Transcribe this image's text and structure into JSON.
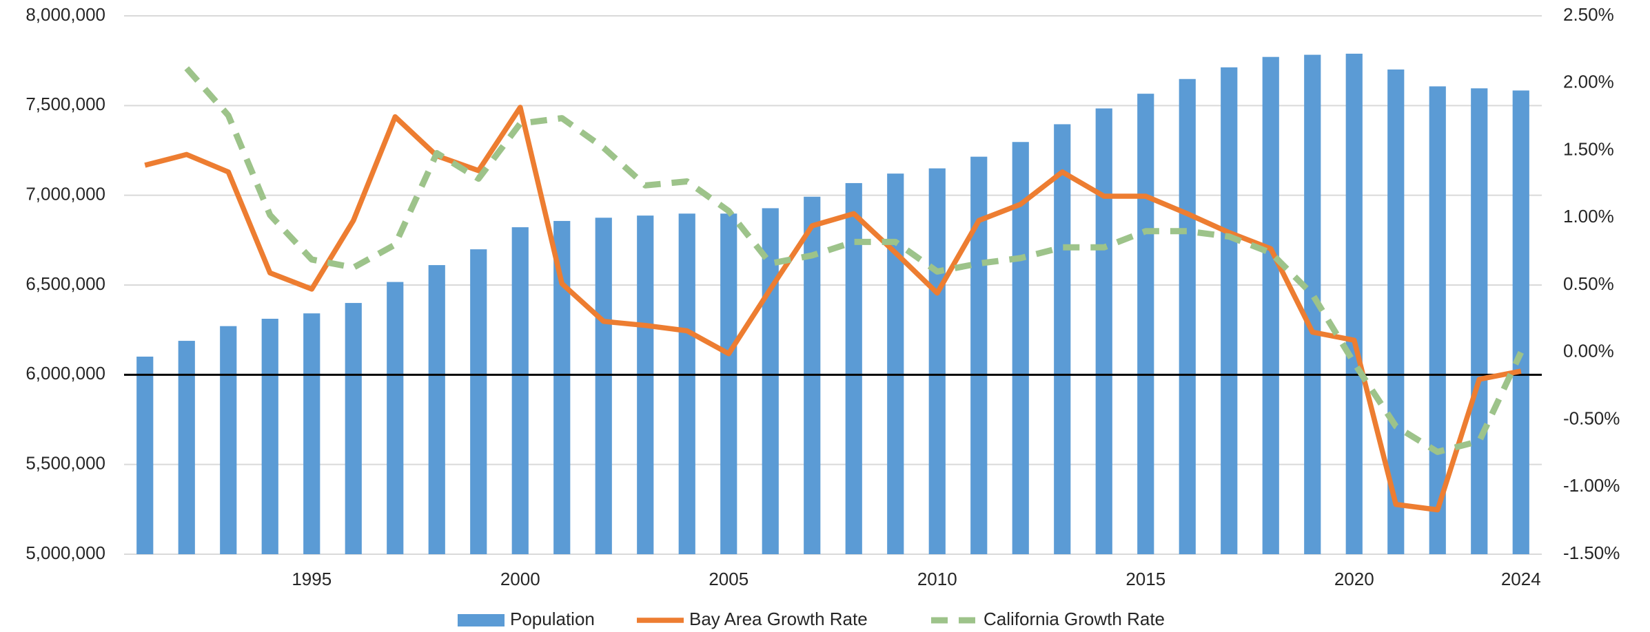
{
  "chart_data": {
    "type": "bar_line",
    "categories": [
      null,
      null,
      null,
      null,
      1995,
      null,
      null,
      null,
      null,
      2000,
      null,
      null,
      null,
      null,
      2005,
      null,
      null,
      null,
      null,
      2010,
      null,
      null,
      null,
      null,
      2015,
      null,
      null,
      null,
      null,
      2020,
      null,
      null,
      null,
      2024
    ],
    "series": [
      {
        "name": "Population",
        "type": "bar",
        "color": "#5b9bd5",
        "axis": "y",
        "values": [
          6101000,
          6189000,
          6271000,
          6312000,
          6342000,
          6400000,
          6517000,
          6611000,
          6699000,
          6822000,
          6857000,
          6875000,
          6887000,
          6898000,
          6898000,
          6928000,
          6992000,
          7068000,
          7121000,
          7150000,
          7215000,
          7297000,
          7396000,
          7484000,
          7566000,
          7648000,
          7713000,
          7771000,
          7783000,
          7789000,
          7701000,
          7607000,
          7596000,
          7584000
        ]
      },
      {
        "name": "Bay Area Growth Rate",
        "type": "line",
        "color": "#ed7d31",
        "axis": "y2",
        "values": [
          1.39,
          1.47,
          1.34,
          0.59,
          0.47,
          0.98,
          1.75,
          1.46,
          1.35,
          1.82,
          0.51,
          0.23,
          0.2,
          0.16,
          -0.01,
          0.47,
          0.94,
          1.03,
          0.74,
          0.44,
          0.98,
          1.1,
          1.34,
          1.16,
          1.16,
          1.03,
          0.89,
          0.77,
          0.15,
          0.09,
          -1.13,
          -1.17,
          -0.2,
          -0.14
        ]
      },
      {
        "name": "California Growth Rate",
        "type": "dashed-line",
        "color": "#9dc38a",
        "axis": "y2",
        "values": [
          null,
          2.11,
          1.76,
          1.02,
          0.69,
          0.63,
          0.8,
          1.48,
          1.29,
          1.7,
          1.74,
          1.52,
          1.24,
          1.27,
          1.05,
          0.66,
          0.72,
          0.82,
          0.82,
          0.6,
          0.66,
          0.7,
          0.78,
          0.78,
          0.9,
          0.9,
          0.86,
          0.74,
          0.43,
          -0.08,
          -0.55,
          -0.74,
          -0.66,
          0
        ]
      }
    ],
    "ylim": [
      5000000,
      8000000
    ],
    "yticks": [
      {
        "value": 5000000,
        "label": "5,000,000"
      },
      {
        "value": 5500000,
        "label": "5,500,000"
      },
      {
        "value": 6000000,
        "label": "6,000,000"
      },
      {
        "value": 6500000,
        "label": "6,500,000"
      },
      {
        "value": 7000000,
        "label": "7,000,000"
      },
      {
        "value": 7500000,
        "label": "7,500,000"
      },
      {
        "value": 8000000,
        "label": "8,000,000"
      }
    ],
    "y2lim": [
      -1.5,
      2.5
    ],
    "y2ticks": [
      {
        "value": -1.5,
        "label": "-1.50%"
      },
      {
        "value": -1,
        "label": "-1.00%"
      },
      {
        "value": -0.5,
        "label": "-0.50%"
      },
      {
        "value": 0,
        "label": "0.00%"
      },
      {
        "value": 0.5,
        "label": "0.50%"
      },
      {
        "value": 1,
        "label": "1.00%"
      },
      {
        "value": 1.5,
        "label": "1.50%"
      },
      {
        "value": 2,
        "label": "2.00%"
      },
      {
        "value": 2.5,
        "label": "2.50%"
      }
    ],
    "grid": true,
    "legend": "bottom"
  }
}
